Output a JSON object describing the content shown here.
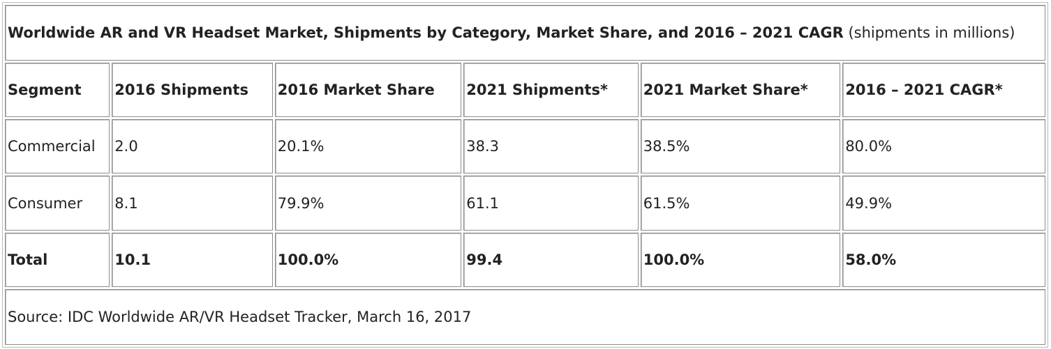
{
  "chart_data": {
    "type": "table",
    "title": "Worldwide AR and VR Headset Market, Shipments by Category, Market Share, and 2016 – 2021 CAGR",
    "title_note": "(shipments in millions)",
    "columns": [
      "Segment",
      "2016 Shipments",
      "2016 Market Share",
      "2021 Shipments*",
      "2021 Market Share*",
      "2016 – 2021 CAGR*"
    ],
    "rows": [
      [
        "Commercial",
        "2.0",
        "20.1%",
        "38.3",
        "38.5%",
        "80.0%"
      ],
      [
        "Consumer",
        "8.1",
        "79.9%",
        "61.1",
        "61.5%",
        "49.9%"
      ]
    ],
    "total_row": [
      "Total",
      "10.1",
      "100.0%",
      "99.4",
      "100.0%",
      "58.0%"
    ],
    "source": "Source: IDC Worldwide AR/VR Headset Tracker, March 16, 2017"
  }
}
